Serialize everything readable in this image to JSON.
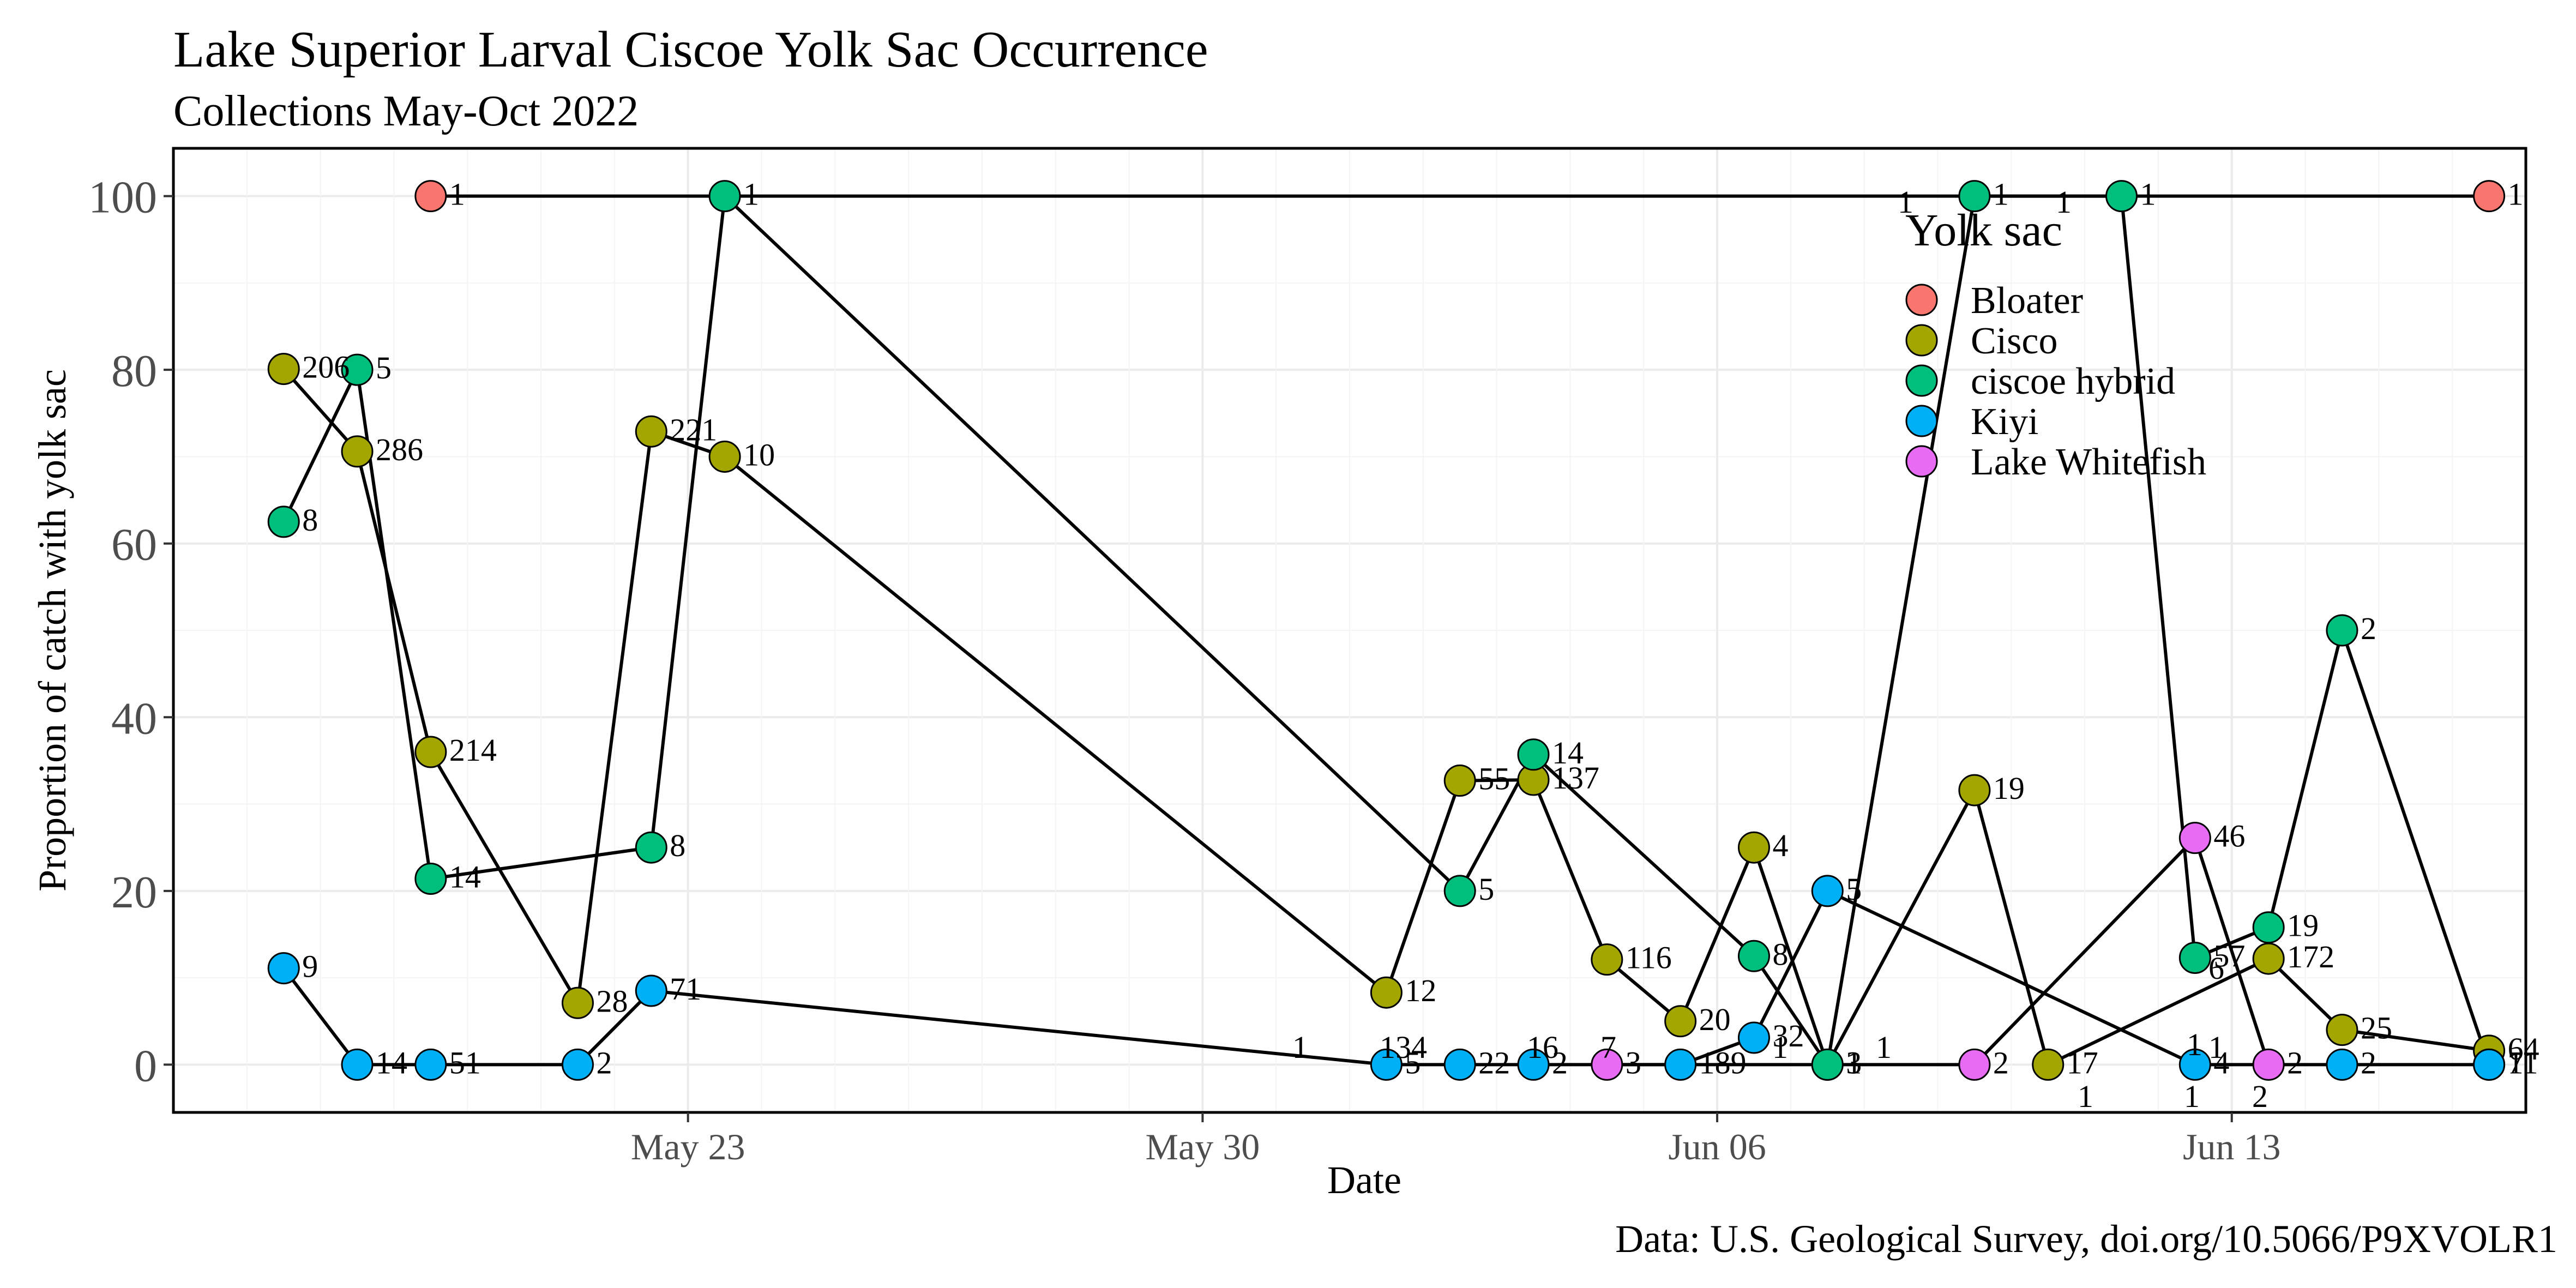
{
  "chart_data": {
    "type": "scatter",
    "title": "Lake Superior Larval Ciscoe Yolk Sac Occurrence",
    "subtitle": "Collections May-Oct 2022",
    "xlabel": "Date",
    "ylabel": "Proportion of catch with yolk sac",
    "caption": "Data: U.S. Geological Survey, doi.org/10.5066/P9XVOLR1",
    "x_is_date": true,
    "xlim": [
      "2022-05-16",
      "2022-06-17"
    ],
    "ylim": [
      -5.5,
      105.5
    ],
    "x_ticks": [
      {
        "value": "2022-05-23",
        "label": "May 23"
      },
      {
        "value": "2022-05-30",
        "label": "May 30"
      },
      {
        "value": "2022-06-06",
        "label": "Jun 06"
      },
      {
        "value": "2022-06-13",
        "label": "Jun 13"
      }
    ],
    "y_ticks": [
      0,
      20,
      40,
      60,
      80,
      100
    ],
    "grid": true,
    "legend": {
      "title": "Yolk sac",
      "position": "top-right"
    },
    "series": [
      {
        "name": "Bloater",
        "color": "#F8766D",
        "points": [
          {
            "x": "2022-05-19 12:00",
            "y": 100,
            "label": "1"
          },
          {
            "x": "2022-06-16 12:00",
            "y": 100,
            "label": "1"
          }
        ]
      },
      {
        "name": "Cisco",
        "color": "#A3A500",
        "points": [
          {
            "x": "2022-05-17 12:00",
            "y": 80.1,
            "label": "206"
          },
          {
            "x": "2022-05-18 12:00",
            "y": 70.6,
            "label": "286"
          },
          {
            "x": "2022-05-19 12:00",
            "y": 36.0,
            "label": "214"
          },
          {
            "x": "2022-05-21 12:00",
            "y": 7.1,
            "label": "28"
          },
          {
            "x": "2022-05-22 12:00",
            "y": 72.9,
            "label": "221"
          },
          {
            "x": "2022-05-23 12:00",
            "y": 70.0,
            "label": "10"
          },
          {
            "x": "2022-06-01 12:00",
            "y": 8.3,
            "label": "12"
          },
          {
            "x": "2022-06-02 12:00",
            "y": 32.7,
            "label": "55"
          },
          {
            "x": "2022-06-03 12:00",
            "y": 32.8,
            "label": "137"
          },
          {
            "x": "2022-06-04 12:00",
            "y": 12.1,
            "label": "116"
          },
          {
            "x": "2022-06-05 12:00",
            "y": 5.0,
            "label": "20"
          },
          {
            "x": "2022-06-06 12:00",
            "y": 25.0,
            "label": "4"
          },
          {
            "x": "2022-06-07 12:00",
            "y": 0,
            "label": "1"
          },
          {
            "x": "2022-06-09 12:00",
            "y": 31.6,
            "label": "19"
          },
          {
            "x": "2022-06-10 12:00",
            "y": 0,
            "label": "17"
          },
          {
            "x": "2022-06-13 12:00",
            "y": 12.2,
            "label": "172"
          },
          {
            "x": "2022-06-14 12:00",
            "y": 4.0,
            "label": "25"
          },
          {
            "x": "2022-06-16 12:00",
            "y": 1.6,
            "label": "64"
          }
        ]
      },
      {
        "name": "ciscoe hybrid",
        "color": "#00BF7D",
        "points": [
          {
            "x": "2022-05-17 12:00",
            "y": 62.5,
            "label": "8"
          },
          {
            "x": "2022-05-18 12:00",
            "y": 80,
            "label": "5"
          },
          {
            "x": "2022-05-19 12:00",
            "y": 21.4,
            "label": "14"
          },
          {
            "x": "2022-05-22 12:00",
            "y": 25,
            "label": "8"
          },
          {
            "x": "2022-05-23 12:00",
            "y": 100,
            "label": "1"
          },
          {
            "x": "2022-06-02 12:00",
            "y": 20,
            "label": "5"
          },
          {
            "x": "2022-06-03 12:00",
            "y": 35.7,
            "label": "14"
          },
          {
            "x": "2022-06-06 12:00",
            "y": 12.5,
            "label": "8"
          },
          {
            "x": "2022-06-07 12:00",
            "y": 0,
            "label": "3"
          },
          {
            "x": "2022-06-09 12:00",
            "y": 100,
            "label": "1"
          },
          {
            "x": "2022-06-11 12:00",
            "y": 100,
            "label": "1"
          },
          {
            "x": "2022-06-12 12:00",
            "y": 12.3,
            "label": "57"
          },
          {
            "x": "2022-06-13 12:00",
            "y": 15.8,
            "label": "19"
          },
          {
            "x": "2022-06-14 12:00",
            "y": 50,
            "label": "2"
          },
          {
            "x": "2022-06-16 12:00",
            "y": 0,
            "label": "7"
          }
        ]
      },
      {
        "name": "Kiyi",
        "color": "#00B0F6",
        "points": [
          {
            "x": "2022-05-17 12:00",
            "y": 11.1,
            "label": "9"
          },
          {
            "x": "2022-05-18 12:00",
            "y": 0,
            "label": "14"
          },
          {
            "x": "2022-05-19 12:00",
            "y": 0,
            "label": "51"
          },
          {
            "x": "2022-05-21 12:00",
            "y": 0,
            "label": "2"
          },
          {
            "x": "2022-05-22 12:00",
            "y": 8.5,
            "label": "71"
          },
          {
            "x": "2022-06-01 12:00",
            "y": 0,
            "label": "5"
          },
          {
            "x": "2022-06-02 12:00",
            "y": 0,
            "label": "22"
          },
          {
            "x": "2022-06-03 12:00",
            "y": 0,
            "label": "2"
          },
          {
            "x": "2022-06-05 12:00",
            "y": 0,
            "label": "189"
          },
          {
            "x": "2022-06-06 12:00",
            "y": 3.1,
            "label": "32"
          },
          {
            "x": "2022-06-07 12:00",
            "y": 20,
            "label": "5"
          },
          {
            "x": "2022-06-12 12:00",
            "y": 0,
            "label": "4"
          },
          {
            "x": "2022-06-14 12:00",
            "y": 0,
            "label": "2"
          },
          {
            "x": "2022-06-16 12:00",
            "y": 0,
            "label": "11"
          }
        ]
      },
      {
        "name": "Lake Whitefish",
        "color": "#E76BF3",
        "points": [
          {
            "x": "2022-06-04 12:00",
            "y": 0,
            "label": "3"
          },
          {
            "x": "2022-06-09 12:00",
            "y": 0,
            "label": "2"
          },
          {
            "x": "2022-06-12 12:00",
            "y": 26.1,
            "label": "46"
          },
          {
            "x": "2022-06-13 12:00",
            "y": 0,
            "label": "2"
          }
        ]
      }
    ],
    "extra_labels": [
      "1",
      "134",
      "16",
      "7",
      "1",
      "1",
      "1",
      "1",
      "1",
      "1",
      "6",
      "2",
      "1",
      "1"
    ]
  }
}
